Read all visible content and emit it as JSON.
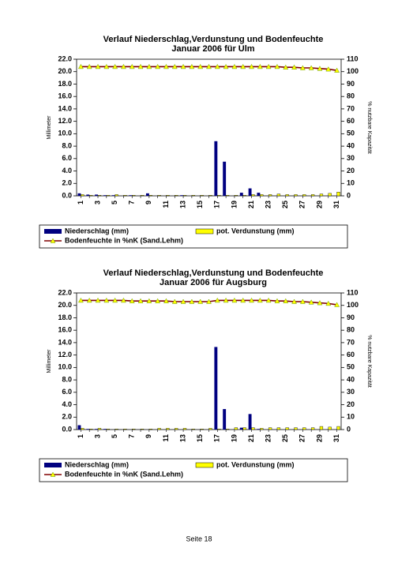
{
  "chart_data": [
    {
      "type": "bar",
      "title": "Verlauf Niederschlag,Verdunstung und Bodenfeuchte",
      "subtitle": "Januar  2006 für Ulm",
      "y_label": "Millimeter",
      "y2_label": "% nutzbare Kapazität",
      "categories": [
        "1",
        null,
        "3",
        null,
        "5",
        null,
        "7",
        null,
        "9",
        null,
        "11",
        null,
        "13",
        null,
        "15",
        null,
        "17",
        null,
        "19",
        null,
        "21",
        null,
        "23",
        null,
        "25",
        null,
        "27",
        null,
        "29",
        null,
        "31"
      ],
      "ylim": [
        0,
        22
      ],
      "yticks": [
        {
          "value": 0,
          "label": "0.0"
        },
        {
          "value": 2,
          "label": "2.0"
        },
        {
          "value": 4,
          "label": "4.0"
        },
        {
          "value": 6,
          "label": "6.0"
        },
        {
          "value": 8,
          "label": "8.0"
        },
        {
          "value": 10,
          "label": "10.0"
        },
        {
          "value": 12,
          "label": "12.0"
        },
        {
          "value": 14,
          "label": "14.0"
        },
        {
          "value": 16,
          "label": "16.0"
        },
        {
          "value": 18,
          "label": "18.0"
        },
        {
          "value": 20,
          "label": "20.0"
        },
        {
          "value": 22,
          "label": "22.0"
        }
      ],
      "y2lim": [
        0,
        110
      ],
      "y2ticks": [
        0,
        10,
        20,
        30,
        40,
        50,
        60,
        70,
        80,
        90,
        100,
        110
      ],
      "legend": "bottom",
      "series": [
        {
          "name": "Niederschlag (mm)",
          "type": "bar",
          "color": "#000080",
          "values": [
            0.4,
            0.2,
            0.2,
            0.1,
            0.1,
            0,
            0.1,
            0,
            0.4,
            0,
            0,
            0,
            0.1,
            0,
            0,
            0,
            8.8,
            5.5,
            0,
            0.5,
            1.2,
            0.5,
            0,
            0,
            0,
            0,
            0,
            0,
            0,
            0,
            0
          ]
        },
        {
          "name": "pot. Verdunstung (mm)",
          "type": "bar",
          "color": "#ffff00",
          "values": [
            0.2,
            0.1,
            0.1,
            0.1,
            0.2,
            0.1,
            0.1,
            0.1,
            0.1,
            0.1,
            0.1,
            0.1,
            0.1,
            0.1,
            0.1,
            0.1,
            0.1,
            0.1,
            0.1,
            0.1,
            0.2,
            0.2,
            0.2,
            0.3,
            0.2,
            0.2,
            0.2,
            0.2,
            0.3,
            0.4,
            0.6
          ]
        },
        {
          "name": "Bodenfeuchte in %nK (Sand.Lehm)",
          "type": "line",
          "axis": "y2",
          "color": "#800000",
          "marker_color": "#ffff00",
          "values": [
            104,
            104,
            104,
            104,
            104,
            104,
            104,
            104,
            104,
            104,
            104,
            104,
            104,
            104,
            104,
            104,
            104,
            104,
            104,
            104,
            104,
            104,
            104,
            104,
            103.5,
            103.5,
            103,
            103,
            102.5,
            102,
            101
          ]
        }
      ]
    },
    {
      "type": "bar",
      "title": "Verlauf Niederschlag,Verdunstung und Bodenfeuchte",
      "subtitle": "Januar 2006 für Augsburg",
      "y_label": "Millimeter",
      "y2_label": "% nutzbare Kapazität",
      "categories": [
        "1",
        null,
        "3",
        null,
        "5",
        null,
        "7",
        null,
        "9",
        null,
        "11",
        null,
        "13",
        null,
        "15",
        null,
        "17",
        null,
        "19",
        null,
        "21",
        null,
        "23",
        null,
        "25",
        null,
        "27",
        null,
        "29",
        null,
        "31"
      ],
      "ylim": [
        0,
        22
      ],
      "yticks": [
        {
          "value": 0,
          "label": "0.0"
        },
        {
          "value": 2,
          "label": "2.0"
        },
        {
          "value": 4,
          "label": "4.0"
        },
        {
          "value": 6,
          "label": "6.0"
        },
        {
          "value": 8,
          "label": "8.0"
        },
        {
          "value": 10,
          "label": "10.0"
        },
        {
          "value": 12,
          "label": "12.0"
        },
        {
          "value": 14,
          "label": "14.0"
        },
        {
          "value": 16,
          "label": "16.0"
        },
        {
          "value": 18,
          "label": "18.0"
        },
        {
          "value": 20,
          "label": "20.0"
        },
        {
          "value": 22,
          "label": "22.0"
        }
      ],
      "y2lim": [
        0,
        110
      ],
      "y2ticks": [
        0,
        10,
        20,
        30,
        40,
        50,
        60,
        70,
        80,
        90,
        100,
        110
      ],
      "legend": "bottom",
      "series": [
        {
          "name": "Niederschlag (mm)",
          "type": "bar",
          "color": "#000080",
          "values": [
            0.7,
            0.1,
            0.1,
            0.1,
            0,
            0,
            0,
            0,
            0,
            0,
            0,
            0,
            0,
            0,
            0,
            0,
            13.3,
            3.3,
            0,
            0.3,
            2.5,
            0.1,
            0,
            0,
            0,
            0,
            0,
            0,
            0,
            0,
            0
          ]
        },
        {
          "name": "pot. Verdunstung (mm)",
          "type": "bar",
          "color": "#ffff00",
          "values": [
            0.2,
            0.1,
            0.2,
            0.1,
            0.1,
            0.1,
            0.1,
            0.1,
            0.1,
            0.2,
            0.2,
            0.2,
            0.2,
            0.1,
            0.1,
            0.2,
            0.1,
            0.1,
            0.3,
            0.3,
            0.3,
            0.2,
            0.3,
            0.3,
            0.3,
            0.3,
            0.3,
            0.3,
            0.5,
            0.4,
            0.5
          ]
        },
        {
          "name": "Bodenfeuchte in %nK (Sand.Lehm)",
          "type": "line",
          "axis": "y2",
          "color": "#800000",
          "marker_color": "#ffff00",
          "values": [
            104,
            104,
            104,
            104,
            104,
            104,
            103.5,
            103.5,
            103.5,
            103.5,
            103.5,
            103,
            103,
            103,
            103,
            103,
            104,
            104,
            104,
            104,
            104,
            104,
            104,
            103.5,
            103.5,
            103,
            103,
            102.5,
            102,
            101.5,
            100.5
          ]
        }
      ]
    }
  ],
  "footer": "Seite 18"
}
